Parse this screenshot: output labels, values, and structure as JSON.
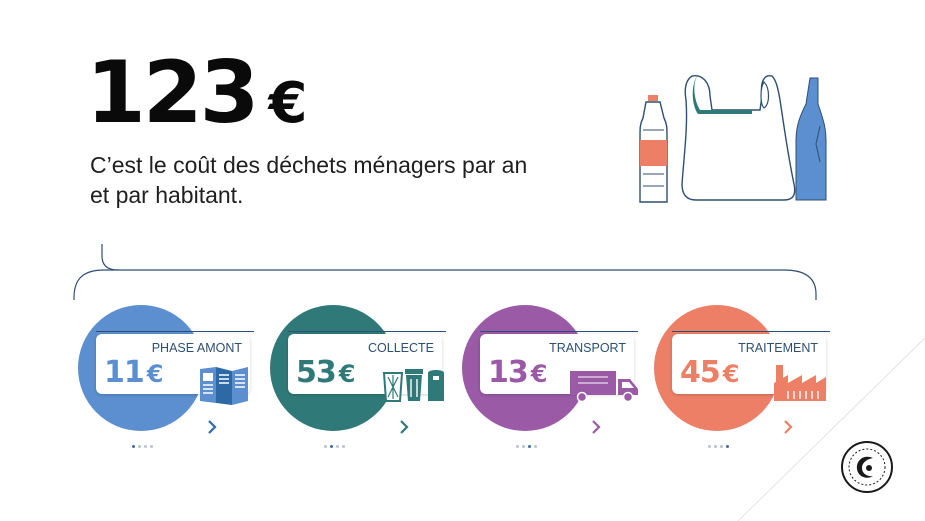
{
  "hero": {
    "amount": "123",
    "currency": "€"
  },
  "subtitle": "C’est le coût des déchets ménagers par an et par habitant.",
  "colors": {
    "phase_amont": "#5b8fcf",
    "collecte": "#2f7a79",
    "transport": "#9a5aa6",
    "traitement": "#ec7f66",
    "line": "#2d4f73"
  },
  "cards": [
    {
      "label": "PHASE AMONT",
      "amount": "11",
      "currency": "€",
      "icon": "brochure-icon",
      "page": 1
    },
    {
      "label": "COLLECTE",
      "amount": "53",
      "currency": "€",
      "icon": "bins-icon",
      "page": 2
    },
    {
      "label": "TRANSPORT",
      "amount": "13",
      "currency": "€",
      "icon": "truck-icon",
      "page": 3
    },
    {
      "label": "TRAITEMENT",
      "amount": "45",
      "currency": "€",
      "icon": "factory-icon",
      "page": 4
    }
  ],
  "illustration": [
    "plastic-bottle-icon",
    "plastic-bag-icon",
    "glass-bottle-icon"
  ],
  "logo": "emblem-logo"
}
